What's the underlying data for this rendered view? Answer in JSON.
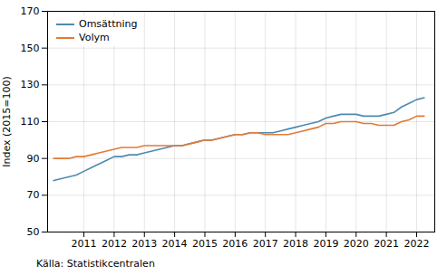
{
  "chart_data": {
    "type": "line",
    "ylabel": "Index (2015=100)",
    "caption": "Källa: Statistikcentralen",
    "x": [
      2010.0,
      2010.25,
      2010.5,
      2010.75,
      2011.0,
      2011.25,
      2011.5,
      2011.75,
      2012.0,
      2012.25,
      2012.5,
      2012.75,
      2013.0,
      2013.25,
      2013.5,
      2013.75,
      2014.0,
      2014.25,
      2014.5,
      2014.75,
      2015.0,
      2015.25,
      2015.5,
      2015.75,
      2016.0,
      2016.25,
      2016.5,
      2016.75,
      2017.0,
      2017.25,
      2017.5,
      2017.75,
      2018.0,
      2018.25,
      2018.5,
      2018.75,
      2019.0,
      2019.25,
      2019.5,
      2019.75,
      2020.0,
      2020.25,
      2020.5,
      2020.75,
      2021.0,
      2021.25,
      2021.5,
      2021.75,
      2022.0,
      2022.25
    ],
    "series": [
      {
        "name": "Omsättning",
        "color": "#4e8ab0",
        "values": [
          78,
          79,
          80,
          81,
          83,
          85,
          87,
          89,
          91,
          91,
          92,
          92,
          93,
          94,
          95,
          96,
          97,
          97,
          98,
          99,
          100,
          100,
          101,
          102,
          103,
          103,
          104,
          104,
          104,
          104,
          105,
          106,
          107,
          108,
          109,
          110,
          112,
          113,
          114,
          114,
          114,
          113,
          113,
          113,
          114,
          115,
          118,
          120,
          122,
          123
        ]
      },
      {
        "name": "Volym",
        "color": "#e07b39",
        "values": [
          90,
          90,
          90,
          91,
          91,
          92,
          93,
          94,
          95,
          96,
          96,
          96,
          97,
          97,
          97,
          97,
          97,
          97,
          98,
          99,
          100,
          100,
          101,
          102,
          103,
          103,
          104,
          104,
          103,
          103,
          103,
          103,
          104,
          105,
          106,
          107,
          109,
          109,
          110,
          110,
          110,
          109,
          109,
          108,
          108,
          108,
          110,
          111,
          113,
          113
        ]
      }
    ],
    "xlim": [
      2009.8,
      2022.6
    ],
    "xticks": [
      2011,
      2012,
      2013,
      2014,
      2015,
      2016,
      2017,
      2018,
      2019,
      2020,
      2021,
      2022
    ],
    "ylim": [
      50,
      170
    ],
    "yticks": [
      50,
      70,
      90,
      110,
      130,
      150,
      170
    ],
    "grid": true,
    "legend": "upper left"
  }
}
